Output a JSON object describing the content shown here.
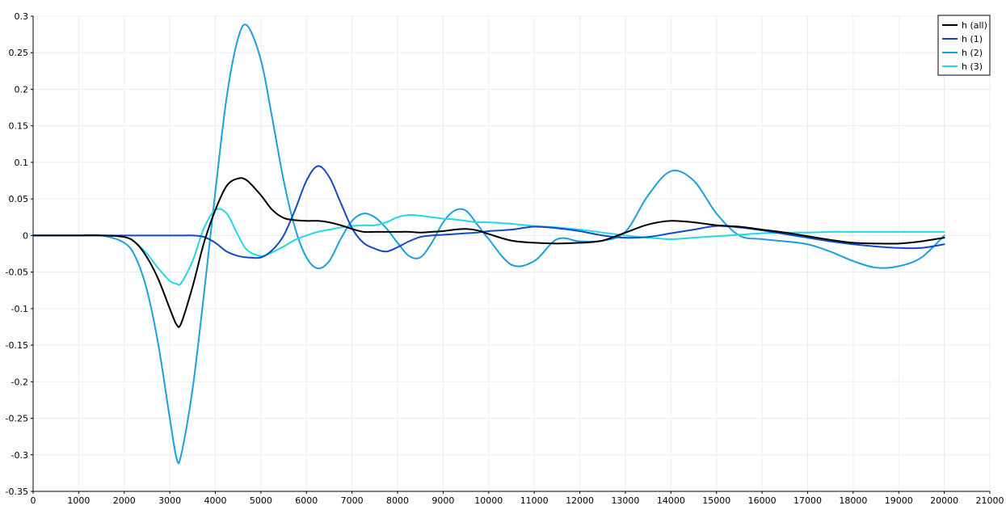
{
  "chart_data": {
    "type": "line",
    "title": "",
    "xlabel": "",
    "ylabel": "",
    "xlim": [
      0,
      21000
    ],
    "ylim": [
      -0.35,
      0.3
    ],
    "grid": true,
    "legend_position": "top-right",
    "x_ticks": [
      "0",
      "1000",
      "2000",
      "3000",
      "4000",
      "5000",
      "6000",
      "7000",
      "8000",
      "9000",
      "10000",
      "11000",
      "12000",
      "13000",
      "14000",
      "15000",
      "16000",
      "17000",
      "18000",
      "19000",
      "20000",
      "21000"
    ],
    "y_ticks": [
      "0.3",
      "0.25",
      "0.2",
      "0.15",
      "0.1",
      "0.05",
      "0",
      "-0.05",
      "-0.1",
      "-0.15",
      "-0.2",
      "-0.25",
      "-0.3",
      "-0.35"
    ],
    "x": [
      0,
      1000,
      1500,
      2000,
      2250,
      2500,
      2750,
      3000,
      3150,
      3250,
      3500,
      3750,
      4000,
      4250,
      4500,
      4700,
      5000,
      5250,
      5500,
      5750,
      6000,
      6250,
      6500,
      6750,
      7000,
      7250,
      7500,
      7750,
      8000,
      8250,
      8500,
      8750,
      9000,
      9250,
      9500,
      9750,
      10000,
      10500,
      11000,
      11500,
      12000,
      12500,
      13000,
      13500,
      14000,
      14500,
      15000,
      15500,
      16000,
      16500,
      17000,
      17500,
      18000,
      18500,
      19000,
      19500,
      20000
    ],
    "series": [
      {
        "name": "h (all)",
        "color": "#000000",
        "values": [
          0,
          0,
          0,
          -0.002,
          -0.01,
          -0.03,
          -0.06,
          -0.1,
          -0.122,
          -0.12,
          -0.07,
          -0.01,
          0.035,
          0.068,
          0.078,
          0.075,
          0.055,
          0.035,
          0.024,
          0.021,
          0.02,
          0.02,
          0.018,
          0.014,
          0.009,
          0.005,
          0.005,
          0.005,
          0.005,
          0.005,
          0.004,
          0.005,
          0.006,
          0.008,
          0.009,
          0.007,
          0.002,
          -0.007,
          -0.01,
          -0.011,
          -0.01,
          -0.007,
          0.004,
          0.015,
          0.02,
          0.018,
          0.014,
          0.012,
          0.008,
          0.004,
          -0.001,
          -0.006,
          -0.01,
          -0.011,
          -0.011,
          -0.008,
          -0.003
        ]
      },
      {
        "name": "h (1)",
        "color": "#1149cc",
        "values": [
          0,
          0,
          0,
          0,
          0,
          0,
          0,
          0,
          0,
          0,
          0,
          -0.002,
          -0.01,
          -0.022,
          -0.028,
          -0.03,
          -0.03,
          -0.02,
          0,
          0.035,
          0.075,
          0.095,
          0.08,
          0.045,
          0.01,
          -0.01,
          -0.018,
          -0.022,
          -0.016,
          -0.008,
          -0.002,
          0,
          0.001,
          0.002,
          0.003,
          0.004,
          0.006,
          0.008,
          0.012,
          0.01,
          0.006,
          0,
          -0.003,
          -0.002,
          0.003,
          0.008,
          0.013,
          0.011,
          0.007,
          0.002,
          -0.003,
          -0.008,
          -0.012,
          -0.015,
          -0.017,
          -0.017,
          -0.012
        ]
      },
      {
        "name": "h (2)",
        "color": "#1a9fe0",
        "values": [
          0,
          0,
          0,
          -0.01,
          -0.03,
          -0.075,
          -0.15,
          -0.25,
          -0.305,
          -0.3,
          -0.21,
          -0.08,
          0.06,
          0.19,
          0.27,
          0.287,
          0.24,
          0.16,
          0.075,
          0.01,
          -0.03,
          -0.045,
          -0.035,
          -0.005,
          0.02,
          0.03,
          0.025,
          0.01,
          -0.01,
          -0.028,
          -0.03,
          -0.01,
          0.018,
          0.034,
          0.034,
          0.015,
          -0.005,
          -0.04,
          -0.035,
          -0.005,
          -0.008,
          -0.007,
          0.005,
          0.055,
          0.088,
          0.075,
          0.03,
          0,
          -0.005,
          -0.008,
          -0.012,
          -0.022,
          -0.035,
          -0.044,
          -0.042,
          -0.03,
          0
        ]
      },
      {
        "name": "h (3)",
        "color": "#22d8e6",
        "values": [
          0,
          0,
          0,
          -0.002,
          -0.01,
          -0.025,
          -0.045,
          -0.062,
          -0.066,
          -0.065,
          -0.035,
          0.01,
          0.035,
          0.03,
          0,
          -0.02,
          -0.028,
          -0.023,
          -0.015,
          -0.006,
          0,
          0.005,
          0.008,
          0.011,
          0.013,
          0.014,
          0.014,
          0.018,
          0.025,
          0.028,
          0.027,
          0.025,
          0.023,
          0.022,
          0.02,
          0.018,
          0.018,
          0.016,
          0.013,
          0.011,
          0.008,
          0.004,
          0,
          -0.003,
          -0.005,
          -0.003,
          -0.001,
          0.001,
          0.003,
          0.004,
          0.004,
          0.005,
          0.005,
          0.005,
          0.005,
          0.005,
          0.005
        ]
      }
    ]
  }
}
